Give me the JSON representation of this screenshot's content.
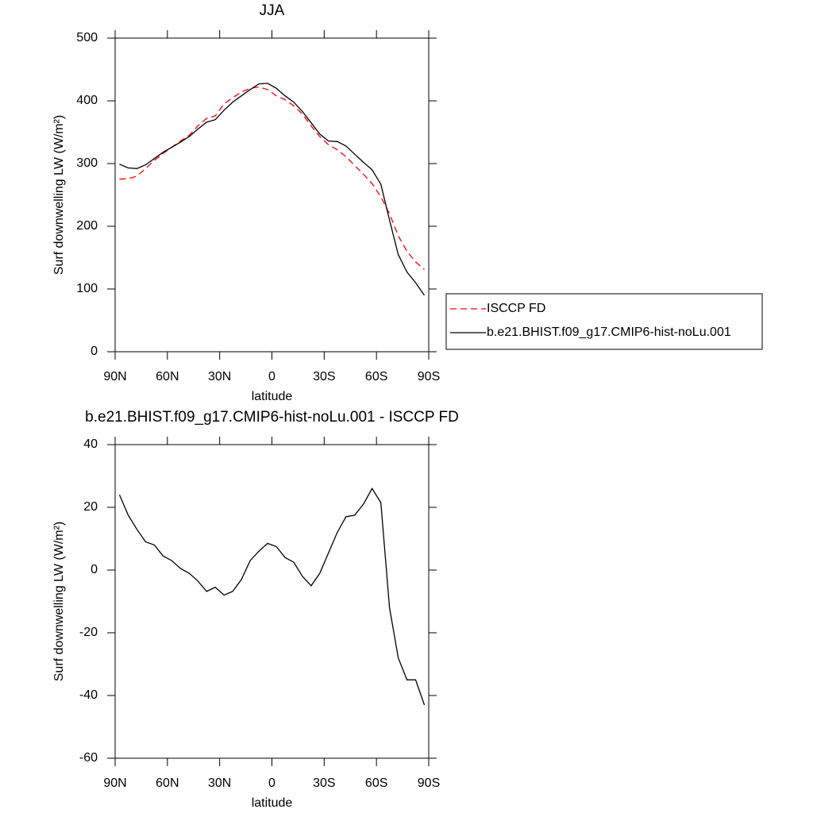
{
  "chart_data": [
    {
      "type": "line",
      "title": "JJA",
      "x_label": "latitude",
      "y_label": "Surf downwelling LW (W/m²)",
      "x": [
        87.5,
        82.5,
        77.5,
        72.5,
        67.5,
        62.5,
        57.5,
        52.5,
        47.5,
        42.5,
        37.5,
        32.5,
        27.5,
        22.5,
        17.5,
        12.5,
        7.5,
        2.5,
        -2.5,
        -7.5,
        -12.5,
        -17.5,
        -22.5,
        -27.5,
        -32.5,
        -37.5,
        -42.5,
        -47.5,
        -52.5,
        -57.5,
        -62.5,
        -67.5,
        -72.5,
        -77.5,
        -82.5,
        -87.5
      ],
      "series": [
        {
          "name": "ISCCP FD",
          "color": "#ff0000",
          "dashed": true,
          "values": [
            275,
            276,
            280,
            292,
            305,
            316,
            326,
            336,
            345,
            360,
            372,
            376,
            395,
            405,
            414,
            420,
            422,
            418,
            408,
            402,
            392,
            379,
            360,
            343,
            330,
            322,
            311,
            297,
            283,
            268,
            247,
            220,
            185,
            160,
            143,
            131
          ]
        },
        {
          "name": "b.e21.BHIST.f09_g17.CMIP6-hist-noLu.001",
          "color": "#000000",
          "dashed": false,
          "values": [
            299,
            293,
            292,
            298,
            308,
            318,
            326,
            334,
            343,
            355,
            366,
            370,
            385,
            398,
            408,
            418,
            427,
            428,
            420,
            408,
            398,
            383,
            365,
            347,
            336,
            335,
            328,
            315,
            302,
            290,
            267,
            210,
            155,
            127,
            110,
            90
          ]
        }
      ],
      "xlim": [
        90,
        -90
      ],
      "xticks": [
        {
          "value": 90,
          "label": "90N"
        },
        {
          "value": 60,
          "label": "60N"
        },
        {
          "value": 30,
          "label": "30N"
        },
        0,
        {
          "value": -30,
          "label": "30S"
        },
        {
          "value": -60,
          "label": "60S"
        },
        {
          "value": -90,
          "label": "90S"
        }
      ],
      "ylim": [
        0,
        500
      ],
      "yticks": [
        0,
        100,
        200,
        300,
        400,
        500
      ],
      "legend": "outside right"
    },
    {
      "type": "line",
      "title": "b.e21.BHIST.f09_g17.CMIP6-hist-noLu.001 - ISCCP FD",
      "x_label": "latitude",
      "y_label": "Surf downwelling LW (W/m²)",
      "x": [
        87.5,
        82.5,
        77.5,
        72.5,
        67.5,
        62.5,
        57.5,
        52.5,
        47.5,
        42.5,
        37.5,
        32.5,
        27.5,
        22.5,
        17.5,
        12.5,
        7.5,
        2.5,
        -2.5,
        -7.5,
        -12.5,
        -17.5,
        -22.5,
        -27.5,
        -32.5,
        -37.5,
        -42.5,
        -47.5,
        -52.5,
        -57.5,
        -62.5,
        -67.5,
        -72.5,
        -77.5,
        -82.5,
        -87.5
      ],
      "color": "#000000",
      "values": [
        24,
        17.5,
        13,
        9,
        8,
        4.5,
        3,
        0.5,
        -1,
        -3.5,
        -6.8,
        -5.5,
        -8,
        -6.8,
        -3,
        3,
        6,
        8.5,
        7.5,
        4,
        2.5,
        -2,
        -5,
        -1,
        5.5,
        12,
        17,
        17.5,
        21,
        26,
        21.5,
        -12,
        -28,
        -35,
        -35,
        -43
      ],
      "xlim": [
        90,
        -90
      ],
      "xticks": [
        {
          "value": 90,
          "label": "90N"
        },
        {
          "value": 60,
          "label": "60N"
        },
        {
          "value": 30,
          "label": "30N"
        },
        0,
        {
          "value": -30,
          "label": "30S"
        },
        {
          "value": -60,
          "label": "60S"
        },
        {
          "value": -90,
          "label": "90S"
        }
      ],
      "ylim": [
        -60,
        40
      ],
      "yticks": [
        -60,
        -40,
        -20,
        0,
        20,
        40
      ]
    }
  ]
}
